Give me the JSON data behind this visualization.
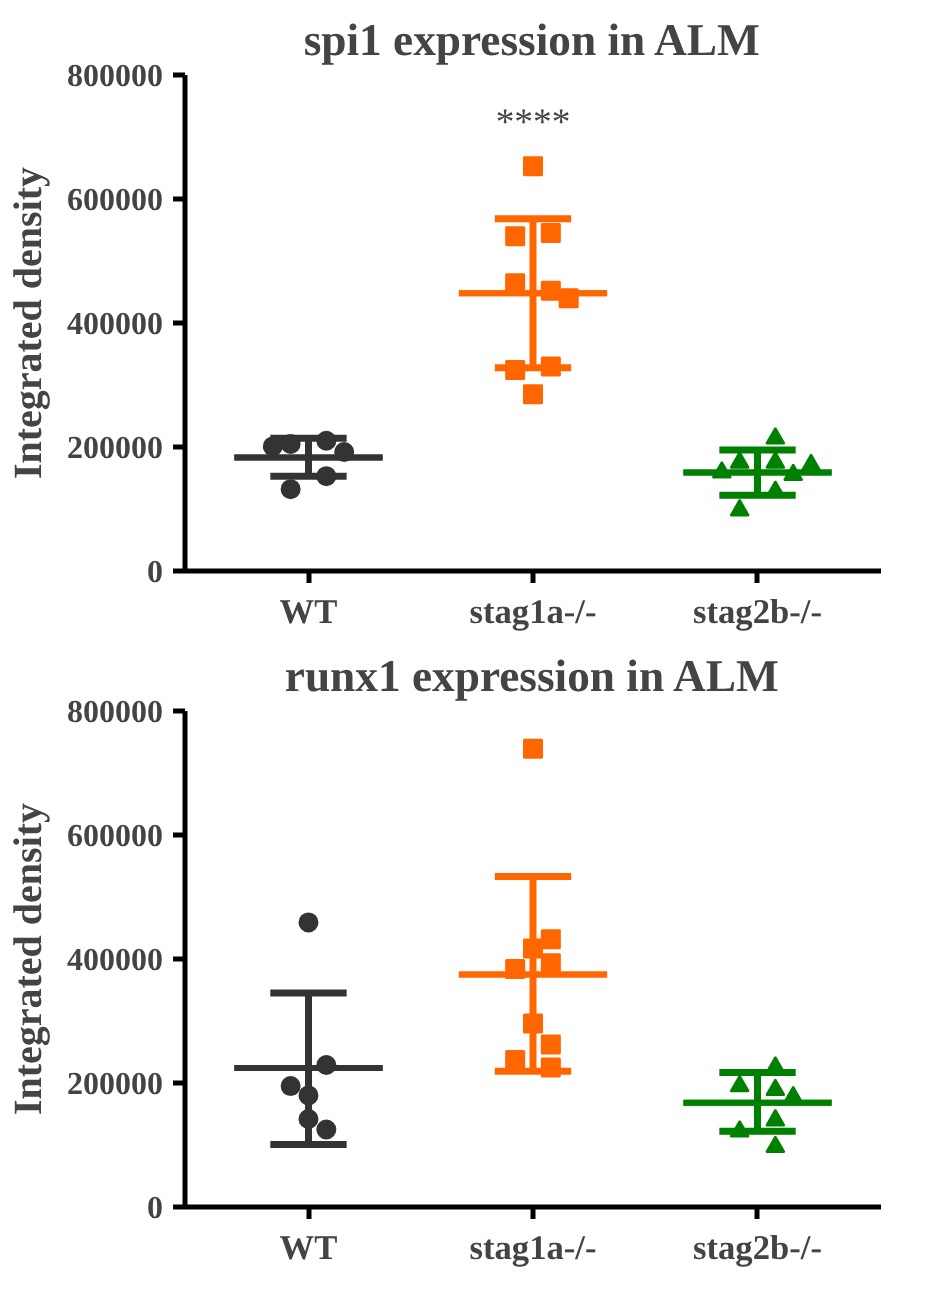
{
  "chart_data": [
    {
      "type": "box",
      "title": "spi1 expression in ALM",
      "ylabel": "Integrated density",
      "categories": [
        "WT",
        "stag1a-/-",
        "stag2b-/-"
      ],
      "ylim": [
        0,
        800000
      ],
      "yticks": [
        0,
        200000,
        400000,
        600000,
        800000
      ],
      "grid": false,
      "annotations": [
        "****"
      ],
      "colors": [
        "#333333",
        "#ff6600",
        "#008000"
      ],
      "boxes": [
        {
          "low": 153000,
          "q1": 183000,
          "median": 183000,
          "q3": 183000,
          "high": 214000
        },
        {
          "low": 328000,
          "q1": 448000,
          "median": 448000,
          "q3": 448000,
          "high": 568000
        },
        {
          "low": 122000,
          "q1": 159000,
          "median": 159000,
          "q3": 159000,
          "high": 195000
        }
      ],
      "series": [
        {
          "type": "scatter",
          "marker": "circle",
          "color": "#333333",
          "x": [
            "WT",
            "WT",
            "WT",
            "WT",
            "WT",
            "WT"
          ],
          "values": [
            210000,
            205000,
            192000,
            201000,
            153000,
            132000
          ]
        },
        {
          "type": "scatter",
          "marker": "square",
          "color": "#ff6600",
          "x": [
            "stag1a-/-",
            "stag1a-/-",
            "stag1a-/-",
            "stag1a-/-",
            "stag1a-/-",
            "stag1a-/-",
            "stag1a-/-",
            "stag1a-/-",
            "stag1a-/-"
          ],
          "values": [
            653000,
            545000,
            540000,
            452000,
            464000,
            440000,
            330000,
            324000,
            285000
          ]
        },
        {
          "type": "scatter",
          "marker": "triangle",
          "color": "#008000",
          "x": [
            "stag2b-/-",
            "stag2b-/-",
            "stag2b-/-",
            "stag2b-/-",
            "stag2b-/-",
            "stag2b-/-",
            "stag2b-/-",
            "stag2b-/-"
          ],
          "values": [
            214000,
            175000,
            175000,
            155000,
            159000,
            171000,
            128000,
            98000
          ]
        }
      ]
    },
    {
      "type": "box",
      "title": "runx1 expression in ALM",
      "ylabel": "Integrated density",
      "categories": [
        "WT",
        "stag1a-/-",
        "stag2b-/-"
      ],
      "ylim": [
        0,
        800000
      ],
      "yticks": [
        0,
        200000,
        400000,
        600000,
        800000
      ],
      "grid": false,
      "colors": [
        "#333333",
        "#ff6600",
        "#008000"
      ],
      "boxes": [
        {
          "low": 101000,
          "q1": 224000,
          "median": 224000,
          "q3": 224000,
          "high": 345000
        },
        {
          "low": 219000,
          "q1": 375000,
          "median": 375000,
          "q3": 375000,
          "high": 533000
        },
        {
          "low": 122000,
          "q1": 168000,
          "median": 168000,
          "q3": 168000,
          "high": 217000
        }
      ],
      "series": [
        {
          "type": "scatter",
          "marker": "circle",
          "color": "#333333",
          "x": [
            "WT",
            "WT",
            "WT",
            "WT",
            "WT",
            "WT"
          ],
          "values": [
            459000,
            229000,
            195000,
            180000,
            142000,
            125000
          ]
        },
        {
          "type": "scatter",
          "marker": "square",
          "color": "#ff6600",
          "x": [
            "stag1a-/-",
            "stag1a-/-",
            "stag1a-/-",
            "stag1a-/-",
            "stag1a-/-",
            "stag1a-/-",
            "stag1a-/-",
            "stag1a-/-",
            "stag1a-/-"
          ],
          "values": [
            739000,
            417000,
            432000,
            393000,
            384000,
            296000,
            262000,
            237000,
            225000
          ]
        },
        {
          "type": "scatter",
          "marker": "triangle",
          "color": "#008000",
          "x": [
            "stag2b-/-",
            "stag2b-/-",
            "stag2b-/-",
            "stag2b-/-",
            "stag2b-/-",
            "stag2b-/-",
            "stag2b-/-"
          ],
          "values": [
            225000,
            195000,
            189000,
            177000,
            140000,
            122000,
            97000
          ]
        }
      ]
    }
  ]
}
